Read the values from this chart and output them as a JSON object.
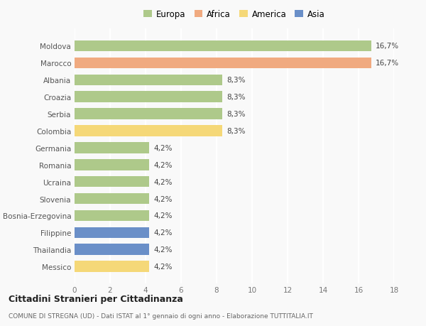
{
  "categories": [
    "Messico",
    "Thailandia",
    "Filippine",
    "Bosnia-Erzegovina",
    "Slovenia",
    "Ucraina",
    "Romania",
    "Germania",
    "Colombia",
    "Serbia",
    "Croazia",
    "Albania",
    "Marocco",
    "Moldova"
  ],
  "values": [
    4.2,
    4.2,
    4.2,
    4.2,
    4.2,
    4.2,
    4.2,
    4.2,
    8.3,
    8.3,
    8.3,
    8.3,
    16.7,
    16.7
  ],
  "continents": [
    "America",
    "Asia",
    "Asia",
    "Europa",
    "Europa",
    "Europa",
    "Europa",
    "Europa",
    "America",
    "Europa",
    "Europa",
    "Europa",
    "Africa",
    "Europa"
  ],
  "colors": {
    "Europa": "#aec98a",
    "Africa": "#f0aa80",
    "America": "#f5d878",
    "Asia": "#6a8fc8"
  },
  "legend_order": [
    "Europa",
    "Africa",
    "America",
    "Asia"
  ],
  "xlim": [
    0,
    18
  ],
  "xticks": [
    0,
    2,
    4,
    6,
    8,
    10,
    12,
    14,
    16,
    18
  ],
  "title1": "Cittadini Stranieri per Cittadinanza",
  "title2": "COMUNE DI STREGNA (UD) - Dati ISTAT al 1° gennaio di ogni anno - Elaborazione TUTTITALIA.IT",
  "background_color": "#f9f9f9",
  "bar_height": 0.65,
  "value_fontsize": 7.5,
  "tick_fontsize": 7.5,
  "legend_fontsize": 8.5
}
